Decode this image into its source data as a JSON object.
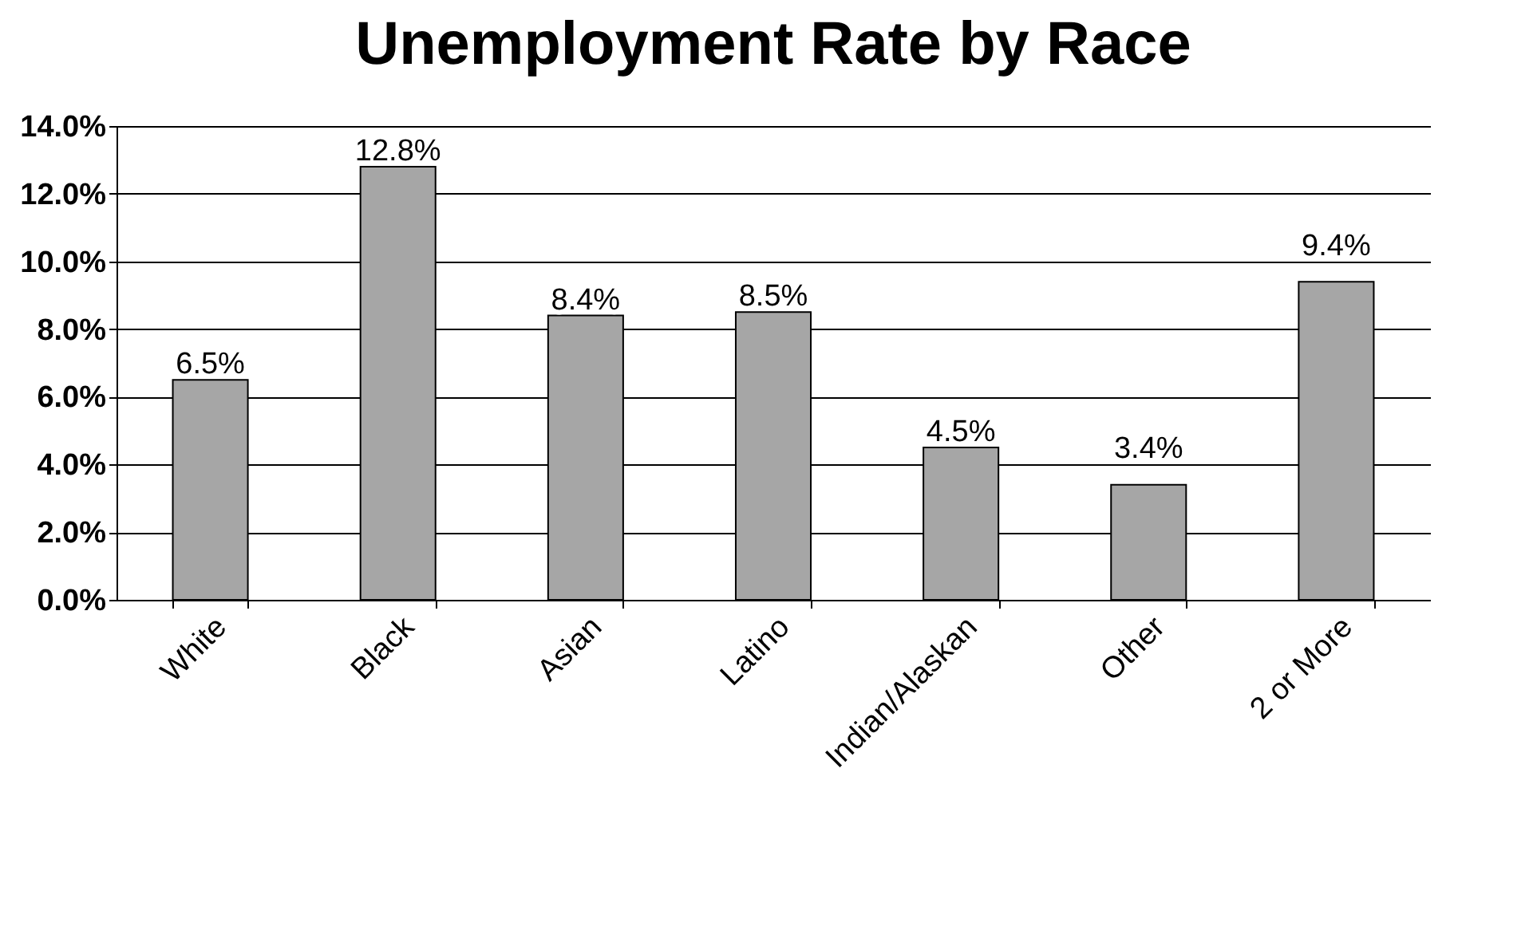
{
  "chart_data": {
    "type": "bar",
    "title": "Unemployment Rate by Race",
    "categories": [
      "White",
      "Black",
      "Asian",
      "Latino",
      "Indian/Alaskan",
      "Other",
      "2 or More"
    ],
    "values": [
      6.5,
      12.8,
      8.4,
      8.5,
      4.5,
      3.4,
      9.4
    ],
    "value_labels": [
      "6.5%",
      "12.8%",
      "8.4%",
      "8.5%",
      "4.5%",
      "3.4%",
      "9.4%"
    ],
    "color": "#a6a6a6",
    "ylim": [
      0,
      14
    ],
    "yticks": [
      {
        "value": 0,
        "label": "0.0%"
      },
      {
        "value": 2,
        "label": "2.0%"
      },
      {
        "value": 4,
        "label": "4.0%"
      },
      {
        "value": 6,
        "label": "6.0%"
      },
      {
        "value": 8,
        "label": "8.0%"
      },
      {
        "value": 10,
        "label": "10.0%"
      },
      {
        "value": 12,
        "label": "12.0%"
      },
      {
        "value": 14,
        "label": "14.0%"
      }
    ],
    "grid": "y"
  }
}
